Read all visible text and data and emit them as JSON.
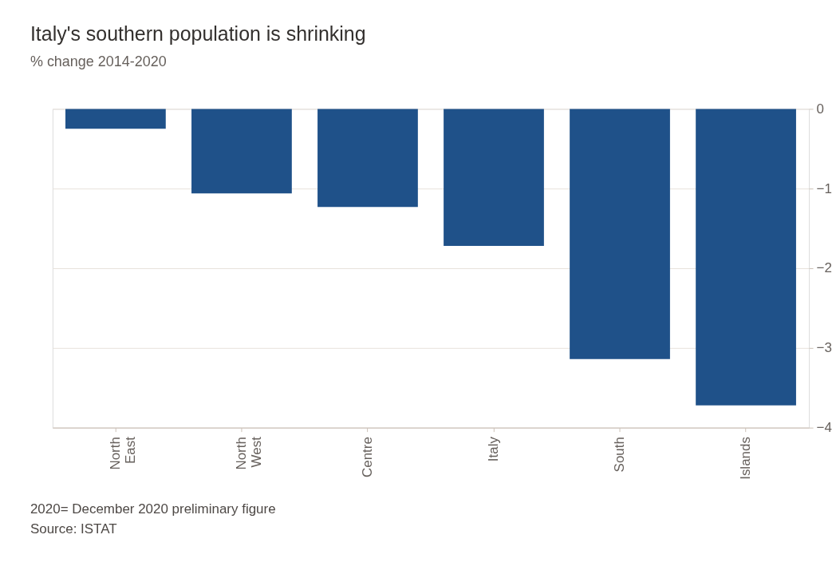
{
  "chart_data": {
    "type": "bar",
    "title": "Italy's southern population is shrinking",
    "subtitle": "% change 2014-2020",
    "categories": [
      "North East",
      "North West",
      "Centre",
      "Italy",
      "South",
      "Islands"
    ],
    "values": [
      -0.25,
      -1.06,
      -1.23,
      -1.72,
      -3.14,
      -3.72
    ],
    "color": "#1f5189",
    "ylim": [
      -4,
      0
    ],
    "yticks": [
      0,
      -1,
      -2,
      -3,
      -4
    ],
    "grid": "y",
    "annotations": [
      "2020= December 2020 preliminary figure",
      "Source: ISTAT"
    ]
  }
}
